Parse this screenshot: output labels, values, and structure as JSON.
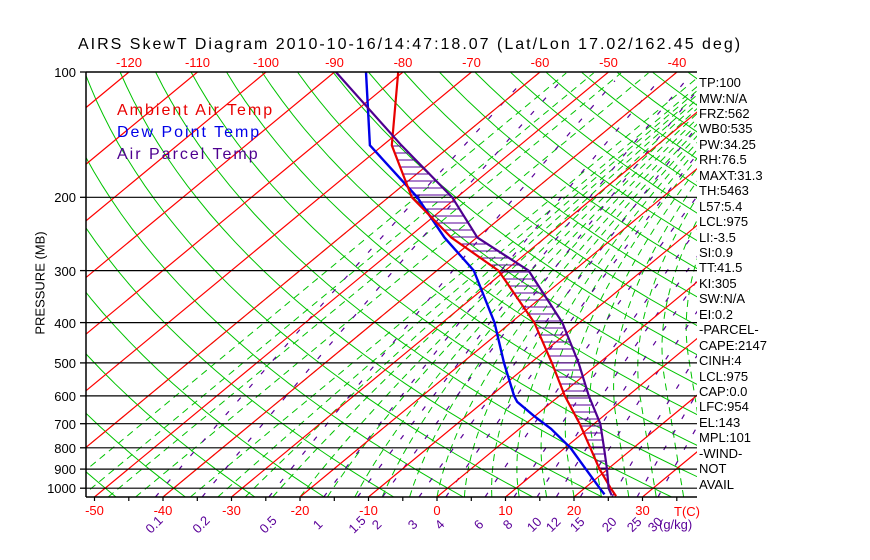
{
  "title": "AIRS SkewT Diagram 2010-10-16/14:47:18.07 (Lat/Lon 17.02/162.45 deg)",
  "legend": {
    "ambient_label": "Ambient Air Temp",
    "dew_label": "Dew Point Temp",
    "parcel_label": "Air Parcel Temp"
  },
  "axes": {
    "pressure_caption": "PRESSURE (MB)",
    "temp_caption": "T(C)",
    "mixing_caption": "(g/kg)",
    "pressure_ticks_mb": [
      100,
      200,
      300,
      400,
      500,
      600,
      700,
      800,
      900,
      1000
    ],
    "top_temp_ticks_c": [
      -120,
      -110,
      -100,
      -90,
      -80,
      -70,
      -60,
      -50,
      -40
    ],
    "bottom_temp_ticks_c": [
      -50,
      -40,
      -30,
      -20,
      -10,
      0,
      10,
      20,
      30
    ],
    "mixing_ratio_ticks_gkg": [
      0.1,
      0.2,
      0.5,
      1,
      1.5,
      2,
      3,
      4,
      6,
      8,
      10,
      12,
      15,
      20,
      25,
      30
    ]
  },
  "colors": {
    "isotherm": "#ff0000",
    "adiabat_green": "#00c300",
    "purple": "#5a0099",
    "ambient_curve": "#e80000",
    "dew_curve": "#0000e8",
    "parcel_curve": "#4e0090",
    "axis_black": "#000000"
  },
  "stats_panel": {
    "items": [
      "TP:100",
      "MW:N/A",
      "FRZ:562",
      "WB0:535",
      "PW:34.25",
      "RH:76.5",
      "MAXT:31.3",
      "TH:5463",
      "L57:5.4",
      "LCL:975",
      "LI:-3.5",
      "SI:0.9",
      "TT:41.5",
      "KI:305",
      "SW:N/A",
      "EI:0.2",
      "-PARCEL-",
      "CAPE:2147",
      "CINH:4",
      "LCL:975",
      "CAP:0.0",
      "LFC:954",
      "EL:143",
      "MPL:101",
      "-WIND-",
      "NOT",
      "AVAIL"
    ]
  },
  "chart_data": {
    "type": "line",
    "subtype": "skewt-log-p",
    "title": "AIRS SkewT Diagram 2010-10-16/14:47:18.07 (Lat/Lon 17.02/162.45 deg)",
    "xlabel": "T(C)",
    "ylabel": "PRESSURE (MB)",
    "pressure_range_mb": [
      100,
      1050
    ],
    "isotherm_step_c": 10,
    "dry_adiabat_theta_c": {
      "min": -50,
      "max": 180,
      "step": 10
    },
    "moist_adiabat_start_c": {
      "min": -60,
      "max": 40,
      "step": 4
    },
    "mixing_ratio_lines_gkg": [
      0.1,
      0.2,
      0.5,
      1,
      1.5,
      2,
      3,
      4,
      6,
      8,
      10,
      12,
      15,
      20,
      25,
      30
    ],
    "grid": true,
    "legend_position": "top-left",
    "series": [
      {
        "name": "Ambient Air Temp",
        "units": {
          "p": "mb",
          "t": "C"
        },
        "points": [
          [
            100,
            -80.7
          ],
          [
            150,
            -68.7
          ],
          [
            200,
            -56.6
          ],
          [
            250,
            -43.7
          ],
          [
            300,
            -31.0
          ],
          [
            400,
            -16.6
          ],
          [
            500,
            -6.9
          ],
          [
            600,
            0.8
          ],
          [
            700,
            7.9
          ],
          [
            800,
            13.7
          ],
          [
            900,
            18.8
          ],
          [
            1000,
            23.8
          ],
          [
            1045,
            26.0
          ]
        ]
      },
      {
        "name": "Dew Point Temp",
        "units": {
          "p": "mb",
          "t": "C"
        },
        "points": [
          [
            100,
            -85.4
          ],
          [
            150,
            -71.9
          ],
          [
            200,
            -55.8
          ],
          [
            250,
            -44.7
          ],
          [
            300,
            -34.6
          ],
          [
            400,
            -22.4
          ],
          [
            500,
            -13.9
          ],
          [
            600,
            -6.6
          ],
          [
            620,
            -5.1
          ],
          [
            670,
            -0.2
          ],
          [
            720,
            4.6
          ],
          [
            800,
            10.8
          ],
          [
            900,
            16.8
          ],
          [
            1000,
            22.2
          ],
          [
            1035,
            24.0
          ]
        ]
      },
      {
        "name": "Air Parcel Temp",
        "units": {
          "p": "mb",
          "t": "C"
        },
        "points": [
          [
            100,
            -89.8
          ],
          [
            150,
            -67.3
          ],
          [
            200,
            -50.7
          ],
          [
            250,
            -39.9
          ],
          [
            300,
            -26.6
          ],
          [
            400,
            -12.5
          ],
          [
            500,
            -3.0
          ],
          [
            600,
            4.3
          ],
          [
            700,
            10.9
          ],
          [
            800,
            15.7
          ],
          [
            900,
            19.9
          ],
          [
            1000,
            23.5
          ],
          [
            1040,
            25.2
          ]
        ]
      }
    ],
    "hatched_area": "between Ambient Air Temp and Air Parcel Temp curves (CAPE region, EL ~143mb to LFC ~954mb)"
  }
}
